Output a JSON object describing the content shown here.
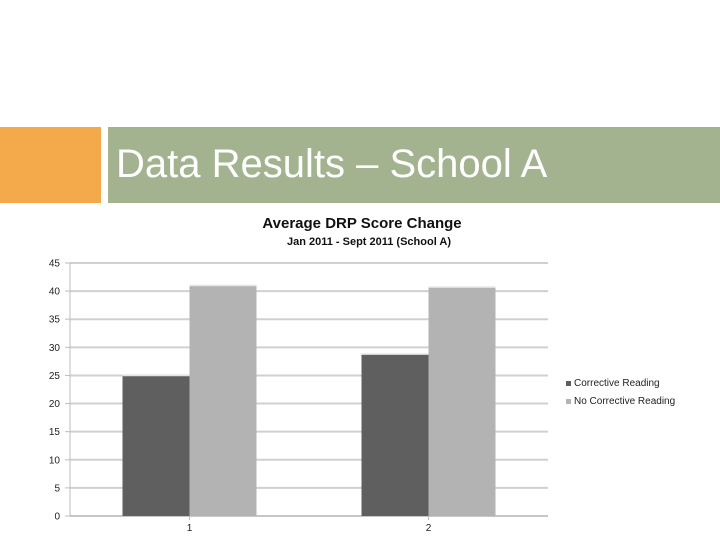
{
  "slide": {
    "title": "Data Results – School A",
    "colors": {
      "accent": "#f4a94a",
      "title_bar": "#a3b38f",
      "title_text": "#ffffff"
    }
  },
  "chart_data": {
    "type": "bar",
    "title": "Average DRP Score Change",
    "subtitle": "Jan 2011 - Sept 2011 (School A)",
    "categories": [
      "1",
      "2"
    ],
    "series": [
      {
        "name": "Corrective Reading",
        "color": "#5f5f5f",
        "values": [
          25,
          28.8
        ]
      },
      {
        "name": "No Corrective Reading",
        "color": "#b3b3b3",
        "values": [
          41,
          40.7
        ]
      }
    ],
    "ylim": [
      0,
      45
    ],
    "yticks": [
      0,
      5,
      10,
      15,
      20,
      25,
      30,
      35,
      40,
      45
    ],
    "grid": true,
    "legend_position": "right"
  }
}
